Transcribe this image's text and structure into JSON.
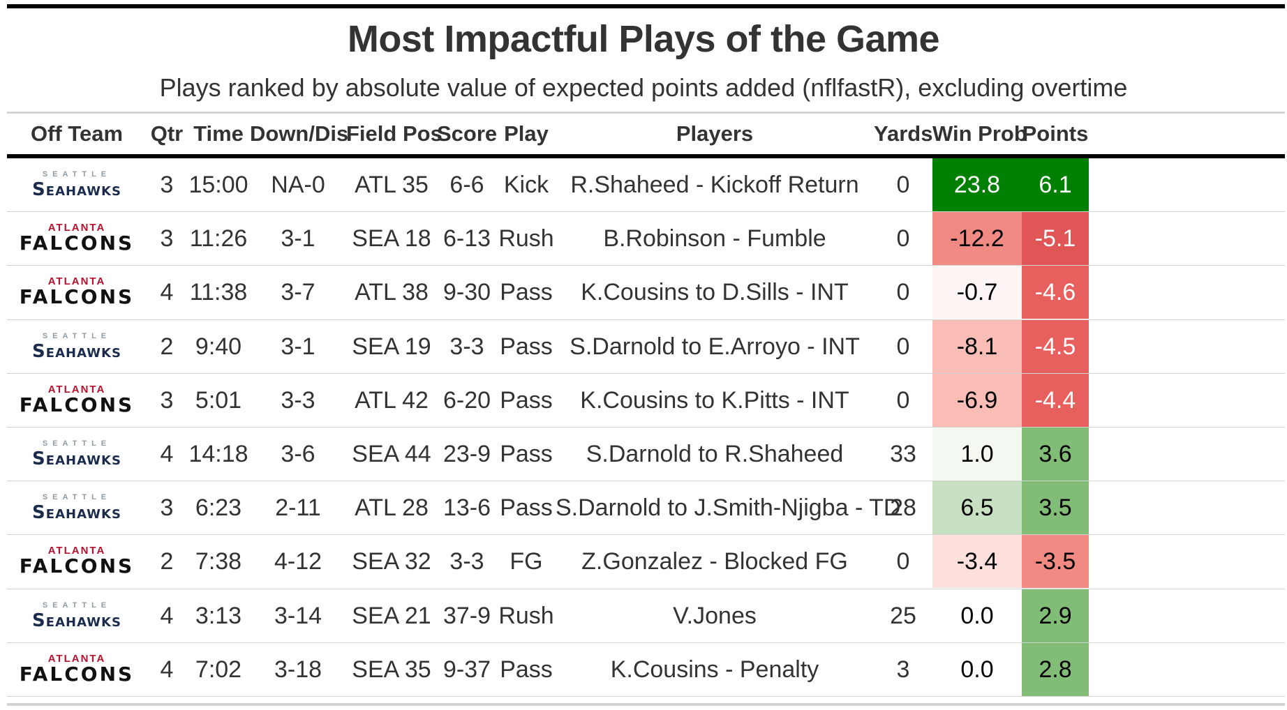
{
  "title": "Most Impactful Plays of the Game",
  "subtitle": "Plays ranked by absolute value of expected points added (nflfastR), excluding overtime",
  "columns": [
    "Off Team",
    "Qtr",
    "Time",
    "Down/Dis",
    "Field Pos",
    "Score",
    "Play",
    "Players",
    "Yards",
    "Win Prob",
    "Points"
  ],
  "logos": {
    "SEA": {
      "top": "SEATTLE",
      "main": "Seahawks"
    },
    "ATL": {
      "top": "ATLANTA",
      "main": "FALCONS"
    }
  },
  "colors": {
    "strong_green": "#008000",
    "green_scale": [
      "#f3f8f1",
      "#c6e0c1",
      "#82bd77"
    ],
    "red_scale": [
      "#fdf6f4",
      "#fde0dc",
      "#f9bdb6",
      "#f4a09a",
      "#f08a83",
      "#e05555"
    ]
  },
  "chart_data": {
    "type": "table",
    "title": "Most Impactful Plays of the Game",
    "subtitle": "Plays ranked by absolute value of expected points added (nflfastR), excluding overtime",
    "rows": [
      {
        "team": "SEA",
        "qtr": "3",
        "time": "15:00",
        "down": "NA-0",
        "field": "ATL 35",
        "score": "6-6",
        "play": "Kick",
        "players": "R.Shaheed - Kickoff Return",
        "yards": "0",
        "winprob": "23.8",
        "points": "6.1"
      },
      {
        "team": "ATL",
        "qtr": "3",
        "time": "11:26",
        "down": "3-1",
        "field": "SEA 18",
        "score": "6-13",
        "play": "Rush",
        "players": "B.Robinson - Fumble",
        "yards": "0",
        "winprob": "-12.2",
        "points": "-5.1"
      },
      {
        "team": "ATL",
        "qtr": "4",
        "time": "11:38",
        "down": "3-7",
        "field": "ATL 38",
        "score": "9-30",
        "play": "Pass",
        "players": "K.Cousins to D.Sills - INT",
        "yards": "0",
        "winprob": "-0.7",
        "points": "-4.6"
      },
      {
        "team": "SEA",
        "qtr": "2",
        "time": "9:40",
        "down": "3-1",
        "field": "SEA 19",
        "score": "3-3",
        "play": "Pass",
        "players": "S.Darnold to E.Arroyo - INT",
        "yards": "0",
        "winprob": "-8.1",
        "points": "-4.5"
      },
      {
        "team": "ATL",
        "qtr": "3",
        "time": "5:01",
        "down": "3-3",
        "field": "ATL 42",
        "score": "6-20",
        "play": "Pass",
        "players": "K.Cousins to K.Pitts - INT",
        "yards": "0",
        "winprob": "-6.9",
        "points": "-4.4"
      },
      {
        "team": "SEA",
        "qtr": "4",
        "time": "14:18",
        "down": "3-6",
        "field": "SEA 44",
        "score": "23-9",
        "play": "Pass",
        "players": "S.Darnold to R.Shaheed",
        "yards": "33",
        "winprob": "1.0",
        "points": "3.6"
      },
      {
        "team": "SEA",
        "qtr": "3",
        "time": "6:23",
        "down": "2-11",
        "field": "ATL 28",
        "score": "13-6",
        "play": "Pass",
        "players": "S.Darnold to J.Smith-Njigba - TD",
        "yards": "28",
        "winprob": "6.5",
        "points": "3.5"
      },
      {
        "team": "ATL",
        "qtr": "2",
        "time": "7:38",
        "down": "4-12",
        "field": "SEA 32",
        "score": "3-3",
        "play": "FG",
        "players": "Z.Gonzalez - Blocked FG",
        "yards": "0",
        "winprob": "-3.4",
        "points": "-3.5"
      },
      {
        "team": "SEA",
        "qtr": "4",
        "time": "3:13",
        "down": "3-14",
        "field": "SEA 21",
        "score": "37-9",
        "play": "Rush",
        "players": "V.Jones",
        "yards": "25",
        "winprob": "0.0",
        "points": "2.9"
      },
      {
        "team": "ATL",
        "qtr": "4",
        "time": "7:02",
        "down": "3-18",
        "field": "SEA 35",
        "score": "9-37",
        "play": "Pass",
        "players": "K.Cousins - Penalty",
        "yards": "3",
        "winprob": "0.0",
        "points": "2.8"
      }
    ]
  }
}
